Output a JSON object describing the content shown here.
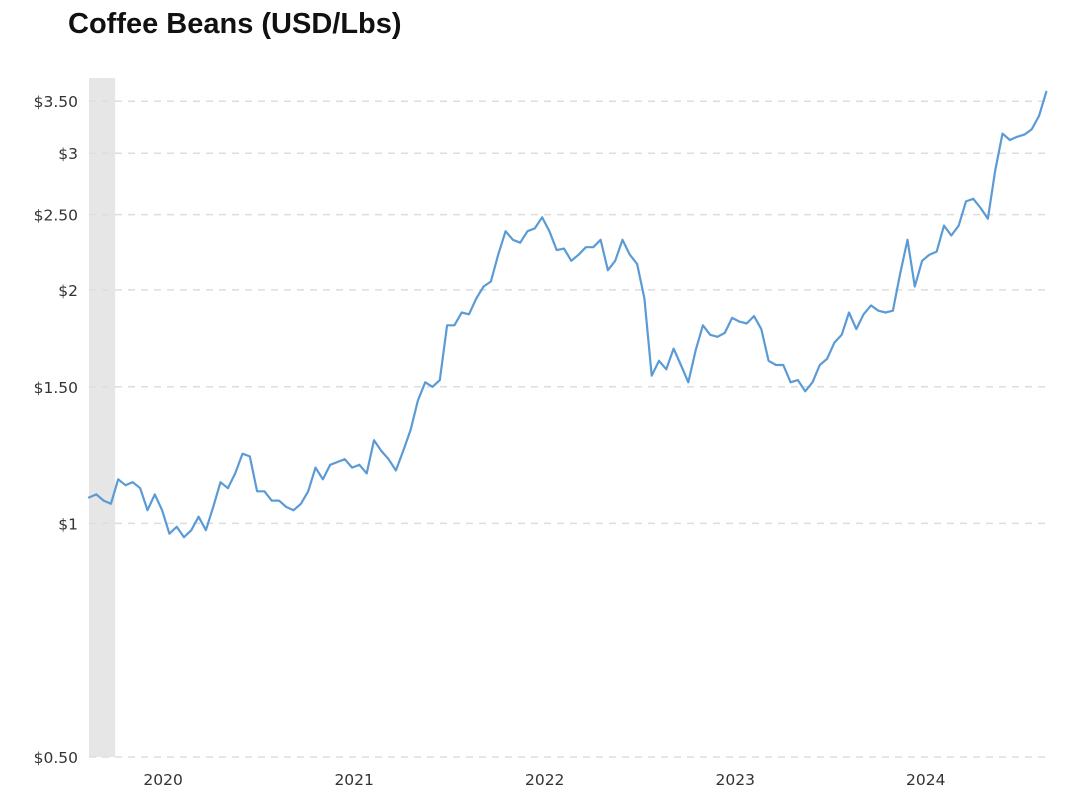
{
  "chart_data": {
    "type": "line",
    "title": "Coffee Beans (USD/Lbs)",
    "xlabel": "",
    "ylabel": "",
    "y_scale": "log",
    "ylim": [
      0.5,
      3.75
    ],
    "xlim": [
      "2019-08-12",
      "2024-08-26"
    ],
    "grid": {
      "y": true,
      "x": false,
      "style": "dashed"
    },
    "legend": "none",
    "shaded_region": {
      "x_start": "2019-08-12",
      "x_end": "2019-10-01"
    },
    "y_ticks": [
      {
        "value": 3.5,
        "label": "$3.50"
      },
      {
        "value": 3,
        "label": "$3"
      },
      {
        "value": 2.5,
        "label": "$2.50"
      },
      {
        "value": 2,
        "label": "$2"
      },
      {
        "value": 1.5,
        "label": "$1.50"
      },
      {
        "value": 1,
        "label": "$1"
      },
      {
        "value": 0.5,
        "label": "$0.50"
      }
    ],
    "x_ticks": [
      {
        "value": "2020-01-01",
        "label": "2020"
      },
      {
        "value": "2021-01-01",
        "label": "2021"
      },
      {
        "value": "2022-01-01",
        "label": "2022"
      },
      {
        "value": "2023-01-01",
        "label": "2023"
      },
      {
        "value": "2024-01-01",
        "label": "2024"
      }
    ],
    "series": [
      {
        "color": "#5b9bd5",
        "points": [
          [
            "2019-08-12",
            1.08
          ],
          [
            "2019-08-26",
            1.09
          ],
          [
            "2019-09-09",
            1.07
          ],
          [
            "2019-09-23",
            1.06
          ],
          [
            "2019-10-07",
            1.14
          ],
          [
            "2019-10-21",
            1.12
          ],
          [
            "2019-11-04",
            1.13
          ],
          [
            "2019-11-18",
            1.11
          ],
          [
            "2019-12-02",
            1.04
          ],
          [
            "2019-12-16",
            1.09
          ],
          [
            "2019-12-30",
            1.04
          ],
          [
            "2020-01-13",
            0.97
          ],
          [
            "2020-01-27",
            0.99
          ],
          [
            "2020-02-10",
            0.96
          ],
          [
            "2020-02-24",
            0.98
          ],
          [
            "2020-03-09",
            1.02
          ],
          [
            "2020-03-23",
            0.98
          ],
          [
            "2020-04-06",
            1.05
          ],
          [
            "2020-04-20",
            1.13
          ],
          [
            "2020-05-04",
            1.11
          ],
          [
            "2020-05-18",
            1.16
          ],
          [
            "2020-06-01",
            1.23
          ],
          [
            "2020-06-15",
            1.22
          ],
          [
            "2020-06-29",
            1.1
          ],
          [
            "2020-07-13",
            1.1
          ],
          [
            "2020-07-27",
            1.07
          ],
          [
            "2020-08-10",
            1.07
          ],
          [
            "2020-08-24",
            1.05
          ],
          [
            "2020-09-07",
            1.04
          ],
          [
            "2020-09-21",
            1.06
          ],
          [
            "2020-10-05",
            1.1
          ],
          [
            "2020-10-19",
            1.18
          ],
          [
            "2020-11-02",
            1.14
          ],
          [
            "2020-11-16",
            1.19
          ],
          [
            "2020-11-30",
            1.2
          ],
          [
            "2020-12-14",
            1.21
          ],
          [
            "2020-12-28",
            1.18
          ],
          [
            "2021-01-11",
            1.19
          ],
          [
            "2021-01-25",
            1.16
          ],
          [
            "2021-02-08",
            1.28
          ],
          [
            "2021-02-22",
            1.24
          ],
          [
            "2021-03-08",
            1.21
          ],
          [
            "2021-03-22",
            1.17
          ],
          [
            "2021-04-05",
            1.24
          ],
          [
            "2021-04-19",
            1.32
          ],
          [
            "2021-05-03",
            1.44
          ],
          [
            "2021-05-17",
            1.52
          ],
          [
            "2021-05-31",
            1.5
          ],
          [
            "2021-06-14",
            1.53
          ],
          [
            "2021-06-28",
            1.8
          ],
          [
            "2021-07-12",
            1.8
          ],
          [
            "2021-07-26",
            1.87
          ],
          [
            "2021-08-09",
            1.86
          ],
          [
            "2021-08-23",
            1.95
          ],
          [
            "2021-09-06",
            2.02
          ],
          [
            "2021-09-20",
            2.05
          ],
          [
            "2021-10-04",
            2.22
          ],
          [
            "2021-10-18",
            2.38
          ],
          [
            "2021-11-01",
            2.32
          ],
          [
            "2021-11-15",
            2.3
          ],
          [
            "2021-11-29",
            2.38
          ],
          [
            "2021-12-13",
            2.4
          ],
          [
            "2021-12-27",
            2.48
          ],
          [
            "2022-01-10",
            2.38
          ],
          [
            "2022-01-24",
            2.25
          ],
          [
            "2022-02-07",
            2.26
          ],
          [
            "2022-02-21",
            2.18
          ],
          [
            "2022-03-07",
            2.22
          ],
          [
            "2022-03-21",
            2.27
          ],
          [
            "2022-04-04",
            2.27
          ],
          [
            "2022-04-18",
            2.32
          ],
          [
            "2022-05-02",
            2.12
          ],
          [
            "2022-05-16",
            2.18
          ],
          [
            "2022-05-30",
            2.32
          ],
          [
            "2022-06-13",
            2.22
          ],
          [
            "2022-06-27",
            2.16
          ],
          [
            "2022-07-11",
            1.95
          ],
          [
            "2022-07-25",
            1.55
          ],
          [
            "2022-08-08",
            1.62
          ],
          [
            "2022-08-22",
            1.58
          ],
          [
            "2022-09-05",
            1.68
          ],
          [
            "2022-09-19",
            1.6
          ],
          [
            "2022-10-03",
            1.52
          ],
          [
            "2022-10-17",
            1.67
          ],
          [
            "2022-10-31",
            1.8
          ],
          [
            "2022-11-14",
            1.75
          ],
          [
            "2022-11-28",
            1.74
          ],
          [
            "2022-12-12",
            1.76
          ],
          [
            "2022-12-26",
            1.84
          ],
          [
            "2023-01-09",
            1.82
          ],
          [
            "2023-01-23",
            1.81
          ],
          [
            "2023-02-06",
            1.85
          ],
          [
            "2023-02-20",
            1.78
          ],
          [
            "2023-03-06",
            1.62
          ],
          [
            "2023-03-20",
            1.6
          ],
          [
            "2023-04-03",
            1.6
          ],
          [
            "2023-04-17",
            1.52
          ],
          [
            "2023-05-01",
            1.53
          ],
          [
            "2023-05-15",
            1.48
          ],
          [
            "2023-05-29",
            1.52
          ],
          [
            "2023-06-12",
            1.6
          ],
          [
            "2023-06-26",
            1.63
          ],
          [
            "2023-07-10",
            1.71
          ],
          [
            "2023-07-24",
            1.75
          ],
          [
            "2023-08-07",
            1.87
          ],
          [
            "2023-08-21",
            1.78
          ],
          [
            "2023-09-04",
            1.86
          ],
          [
            "2023-09-18",
            1.91
          ],
          [
            "2023-10-02",
            1.88
          ],
          [
            "2023-10-16",
            1.87
          ],
          [
            "2023-10-30",
            1.88
          ],
          [
            "2023-11-13",
            2.1
          ],
          [
            "2023-11-27",
            2.32
          ],
          [
            "2023-12-11",
            2.02
          ],
          [
            "2023-12-25",
            2.18
          ],
          [
            "2024-01-08",
            2.22
          ],
          [
            "2024-01-22",
            2.24
          ],
          [
            "2024-02-05",
            2.42
          ],
          [
            "2024-02-19",
            2.35
          ],
          [
            "2024-03-04",
            2.42
          ],
          [
            "2024-03-18",
            2.6
          ],
          [
            "2024-04-01",
            2.62
          ],
          [
            "2024-04-15",
            2.55
          ],
          [
            "2024-04-29",
            2.47
          ],
          [
            "2024-05-13",
            2.85
          ],
          [
            "2024-05-27",
            3.18
          ],
          [
            "2024-06-10",
            3.12
          ],
          [
            "2024-06-24",
            3.15
          ],
          [
            "2024-07-08",
            3.17
          ],
          [
            "2024-07-22",
            3.22
          ],
          [
            "2024-08-05",
            3.35
          ],
          [
            "2024-08-19",
            3.6
          ]
        ]
      }
    ]
  }
}
